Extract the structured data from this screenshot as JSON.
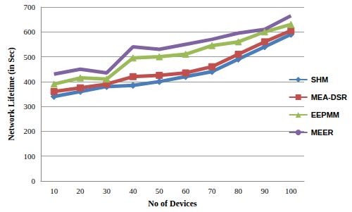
{
  "chart_data": {
    "type": "line",
    "x_label": "No of Devices",
    "y_label": "Network Lifetime (in Sec)",
    "categories": [
      "10",
      "20",
      "30",
      "40",
      "50",
      "60",
      "70",
      "80",
      "90",
      "100"
    ],
    "series": [
      {
        "name": "SHM",
        "color": "#4a7ebb",
        "marker": "diamond",
        "values": [
          340,
          360,
          380,
          385,
          400,
          420,
          440,
          490,
          540,
          590
        ]
      },
      {
        "name": "MEA-DSR",
        "color": "#c0504d",
        "marker": "square",
        "values": [
          360,
          375,
          390,
          420,
          425,
          435,
          460,
          510,
          560,
          605
        ]
      },
      {
        "name": "EEPMM",
        "color": "#9bbb59",
        "marker": "triangle",
        "values": [
          390,
          415,
          410,
          495,
          500,
          510,
          545,
          560,
          600,
          630
        ]
      },
      {
        "name": "MEER",
        "color": "#8064a2",
        "marker": "none",
        "values": [
          430,
          450,
          435,
          540,
          530,
          550,
          570,
          595,
          610,
          665
        ]
      }
    ],
    "ylim": [
      0,
      700
    ],
    "yticks": [
      0,
      100,
      200,
      300,
      400,
      500,
      600,
      700
    ],
    "grid": true,
    "legend": "right"
  }
}
